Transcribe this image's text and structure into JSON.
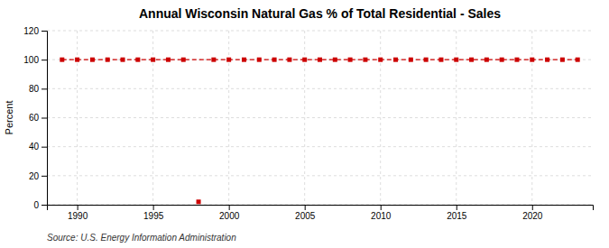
{
  "chart_data": {
    "type": "line",
    "title": "Annual Wisconsin Natural Gas % of Total Residential - Sales",
    "ylabel": "Percent",
    "annotations": [
      "Source: U.S. Energy Information Administration"
    ],
    "series": [
      {
        "x": [
          1989,
          1990,
          1991,
          1992,
          1993,
          1994,
          1995,
          1996,
          1997,
          1999,
          2000,
          2001,
          2002,
          2003,
          2004,
          2005,
          2006,
          2007,
          2008,
          2009,
          2010,
          2011,
          2012,
          2013,
          2014,
          2015,
          2016,
          2017,
          2018,
          2019,
          2020,
          2021,
          2022,
          2023
        ],
        "values": [
          100,
          100,
          100,
          100,
          100,
          100,
          100,
          100,
          100,
          100,
          100,
          100,
          100,
          100,
          100,
          100,
          100,
          100,
          100,
          100,
          100,
          100,
          100,
          100,
          100,
          100,
          100,
          100,
          100,
          100,
          100,
          100,
          100,
          100
        ],
        "color": "#cc0000",
        "marker": "square",
        "line_style": "dashed"
      },
      {
        "x": [
          1998
        ],
        "values": [
          2
        ],
        "color": "#cc0000",
        "marker": "square",
        "line_style": "none"
      }
    ],
    "xlim": [
      1988,
      2024
    ],
    "xticks": [
      1990,
      1995,
      2000,
      2005,
      2010,
      2015,
      2020
    ],
    "ylim": [
      0,
      120
    ],
    "yticks": [
      0,
      20,
      40,
      60,
      80,
      100,
      120
    ],
    "grid": true
  }
}
